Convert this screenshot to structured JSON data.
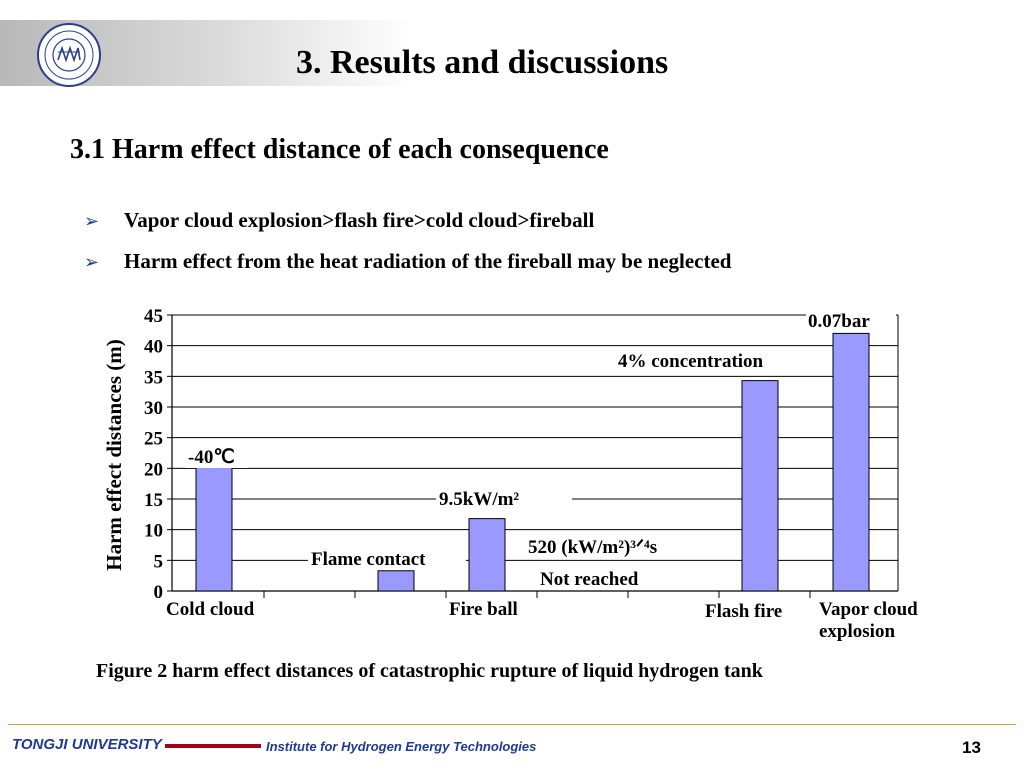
{
  "header": {
    "title": "3. Results and discussions",
    "logo_icon": "tongji-university-seal-icon"
  },
  "section_title": "3.1 Harm effect distance of each consequence",
  "bullets": [
    "Vapor cloud explosion>flash fire>cold cloud>fireball",
    "Harm effect from the heat radiation of the fireball may be neglected"
  ],
  "chart_data": {
    "type": "bar",
    "ylabel": "Harm effect distances (m)",
    "ylim": [
      0,
      45
    ],
    "yticks": [
      0,
      5,
      10,
      15,
      20,
      25,
      30,
      35,
      40,
      45
    ],
    "grid": true,
    "bar_color": "#9999ff",
    "x_labels": [
      "Cold cloud",
      "Fire ball",
      "Flash fire",
      "Vapor cloud explosion"
    ],
    "series": [
      {
        "values": [
          21,
          3.3,
          11.8,
          0,
          34.3,
          42
        ]
      }
    ],
    "annotations": [
      "-40℃",
      "Flame contact",
      "9.5kW/m²",
      "520 (kW/m²)³ᐟ⁴s",
      "Not reached",
      "4% concentration",
      "0.07bar"
    ]
  },
  "caption": "Figure 2 harm effect distances of catastrophic rupture of liquid hydrogen tank",
  "footer": {
    "university": "TONGJI UNIVERSITY",
    "institute": "Institute for Hydrogen Energy Technologies",
    "page": "13"
  },
  "colors": {
    "bullet_arrow": "#1f3a93",
    "footer_text": "#1f3a93",
    "footer_bar": "#a3001a",
    "footer_line": "#c9a060"
  }
}
